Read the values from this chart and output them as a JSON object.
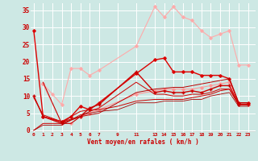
{
  "background_color": "#cde8e4",
  "grid_color": "#ffffff",
  "xlabel": "Vent moyen/en rafales ( km/h )",
  "xlabel_color": "#cc0000",
  "xticks": [
    0,
    1,
    2,
    3,
    4,
    5,
    6,
    7,
    9,
    11,
    13,
    14,
    15,
    16,
    17,
    18,
    19,
    20,
    21,
    22,
    23
  ],
  "yticks": [
    0,
    5,
    10,
    15,
    20,
    25,
    30,
    35
  ],
  "ylim": [
    -0.5,
    37
  ],
  "xlim": [
    -0.3,
    23.8
  ],
  "lines": [
    {
      "x": [
        1,
        2,
        3,
        4,
        5,
        6,
        7,
        11,
        13,
        14,
        15,
        16,
        17,
        18,
        19,
        20,
        21,
        22,
        23
      ],
      "y": [
        13.5,
        10.5,
        7.5,
        18,
        18,
        16,
        17.5,
        24.5,
        36,
        33,
        36,
        33,
        32,
        29,
        27,
        28,
        29,
        19,
        19
      ],
      "color": "#ffaaaa",
      "lw": 0.8,
      "marker": "D",
      "ms": 1.8
    },
    {
      "x": [
        1,
        3,
        4,
        5,
        6,
        7,
        11,
        13,
        14,
        15,
        16,
        17,
        18,
        19,
        20,
        21,
        22,
        23
      ],
      "y": [
        13.5,
        2.0,
        2.0,
        4.0,
        5.0,
        6.0,
        10.5,
        11.5,
        12.0,
        12.0,
        12.0,
        12.0,
        12.5,
        13.0,
        13.5,
        14.0,
        7.5,
        7.5
      ],
      "color": "#ff9999",
      "lw": 0.8,
      "marker": "D",
      "ms": 1.8
    },
    {
      "x": [
        0,
        1,
        3,
        4,
        5,
        6,
        7,
        11,
        13,
        14,
        15,
        16,
        17,
        18,
        19,
        20,
        21,
        22,
        23
      ],
      "y": [
        29,
        4,
        2.5,
        4,
        7,
        6,
        8,
        16.5,
        20.5,
        21,
        17,
        17,
        17,
        16,
        16,
        16,
        15,
        8,
        8
      ],
      "color": "#dd0000",
      "lw": 1.0,
      "marker": "D",
      "ms": 1.8
    },
    {
      "x": [
        0,
        1,
        3,
        5,
        6,
        7,
        11,
        13,
        14,
        15,
        16,
        17,
        18,
        19,
        20,
        21,
        22,
        23
      ],
      "y": [
        10,
        4,
        2,
        4,
        6.5,
        7.5,
        17,
        11,
        11.5,
        11,
        11,
        11.5,
        11,
        12,
        13,
        13,
        7.5,
        7.5
      ],
      "color": "#cc0000",
      "lw": 1.0,
      "marker": "+",
      "ms": 3.0
    },
    {
      "x": [
        0,
        1,
        3,
        5,
        6,
        7,
        11,
        13,
        14,
        15,
        16,
        17,
        18,
        19,
        20,
        21,
        22,
        23
      ],
      "y": [
        9.5,
        4.5,
        2.5,
        4,
        5.5,
        6.5,
        14,
        10.5,
        10.5,
        10,
        10,
        10.5,
        10.5,
        11,
        12,
        12,
        7.5,
        7.5
      ],
      "color": "#cc0000",
      "lw": 0.7,
      "marker": null,
      "ms": 0
    },
    {
      "x": [
        0,
        1,
        3,
        4,
        5,
        6,
        7,
        9,
        11,
        13,
        14,
        15,
        16,
        17,
        18,
        19,
        20,
        21,
        22,
        23
      ],
      "y": [
        0,
        2,
        2,
        4,
        5.5,
        6,
        6,
        7,
        8.5,
        9,
        9,
        9,
        9,
        9.5,
        10,
        10.5,
        11.5,
        12,
        7.5,
        7.5
      ],
      "color": "#cc0000",
      "lw": 0.7,
      "marker": null,
      "ms": 0
    },
    {
      "x": [
        1,
        3,
        4,
        5,
        7,
        11,
        13,
        15,
        16,
        17,
        19,
        20,
        21,
        22,
        23
      ],
      "y": [
        14,
        2,
        2,
        4,
        5,
        11,
        12,
        12.5,
        12.5,
        13,
        14,
        14.5,
        15,
        8,
        8
      ],
      "color": "#bb0000",
      "lw": 0.7,
      "marker": null,
      "ms": 0
    },
    {
      "x": [
        0,
        1,
        3,
        4,
        5,
        6,
        7,
        9,
        11,
        13,
        14,
        15,
        16,
        17,
        18,
        19,
        20,
        21,
        22,
        23
      ],
      "y": [
        0,
        1.5,
        1.5,
        3,
        4.5,
        5,
        5.5,
        6,
        8,
        8,
        8.5,
        8.5,
        8.5,
        9,
        9,
        10,
        10.5,
        11,
        7,
        7
      ],
      "color": "#aa0000",
      "lw": 0.6,
      "marker": null,
      "ms": 0
    }
  ]
}
